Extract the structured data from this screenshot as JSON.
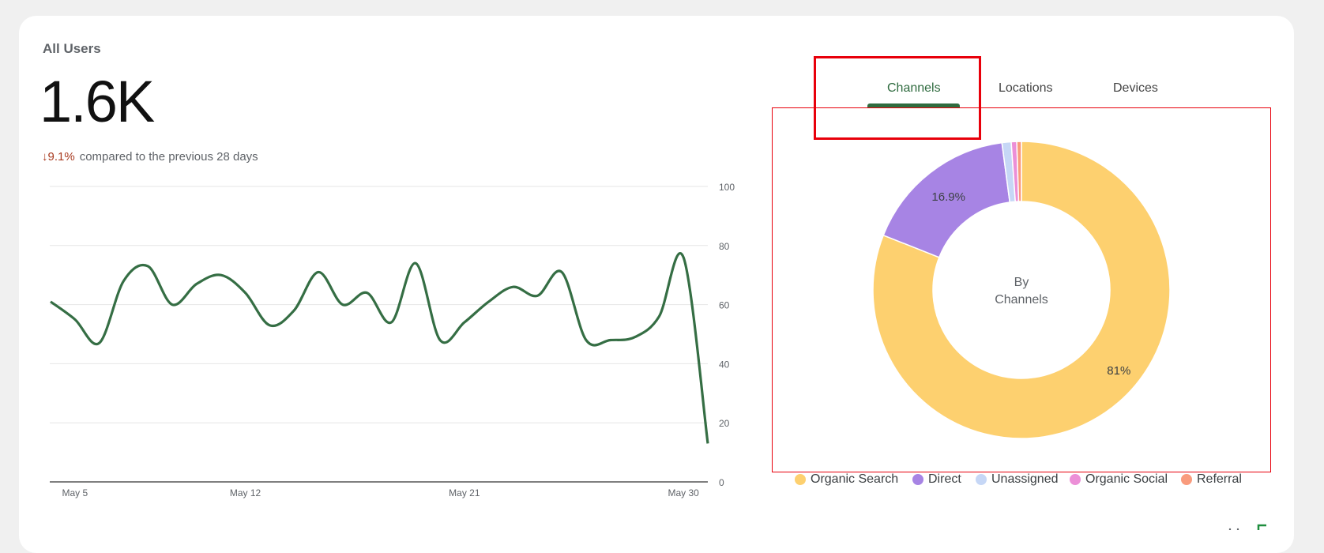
{
  "card": {
    "title": "All Users",
    "value": "1.6K",
    "change_arrow": "↓",
    "change_pct": "9.1%",
    "change_text": "compared to the previous 28 days"
  },
  "tabs": [
    {
      "label": "Channels",
      "active": true
    },
    {
      "label": "Locations",
      "active": false
    },
    {
      "label": "Devices",
      "active": false
    }
  ],
  "donut_center": {
    "line1": "By",
    "line2": "Channels"
  },
  "colors": {
    "line": "#356e44",
    "accent": "#2f6b3f",
    "highlight": "#e8000b",
    "organic_search": "#fdd06f",
    "direct": "#a784e4",
    "unassigned": "#c6d7f6",
    "organic_social": "#ec8fd7",
    "referral": "#f99b7d"
  },
  "chart_data": [
    {
      "type": "line",
      "x_tick_labels": [
        "May 5",
        "May 12",
        "May 21",
        "May 30"
      ],
      "ylim": [
        0,
        100
      ],
      "y_ticks": [
        0,
        20,
        40,
        60,
        80,
        100
      ],
      "grid": true,
      "series": [
        {
          "values": [
            61,
            55,
            47,
            68,
            73,
            60,
            67,
            70,
            64,
            53,
            58,
            71,
            60,
            64,
            54,
            74,
            48,
            54,
            61,
            66,
            63,
            71,
            48,
            48,
            49,
            56,
            76,
            13
          ]
        }
      ]
    },
    {
      "type": "pie",
      "center_label": "By Channels",
      "slices": [
        {
          "label": "Organic Search",
          "value": 81,
          "color": "#fdd06f",
          "display": "81%"
        },
        {
          "label": "Direct",
          "value": 16.9,
          "color": "#a784e4",
          "display": "16.9%"
        },
        {
          "label": "Unassigned",
          "value": 1.0,
          "color": "#c6d7f6",
          "display": ""
        },
        {
          "label": "Organic Social",
          "value": 0.6,
          "color": "#ec8fd7",
          "display": ""
        },
        {
          "label": "Referral",
          "value": 0.5,
          "color": "#f99b7d",
          "display": ""
        }
      ],
      "legend": [
        "Organic Search",
        "Direct",
        "Unassigned",
        "Organic Social",
        "Referral"
      ],
      "legend_position": "bottom"
    }
  ]
}
